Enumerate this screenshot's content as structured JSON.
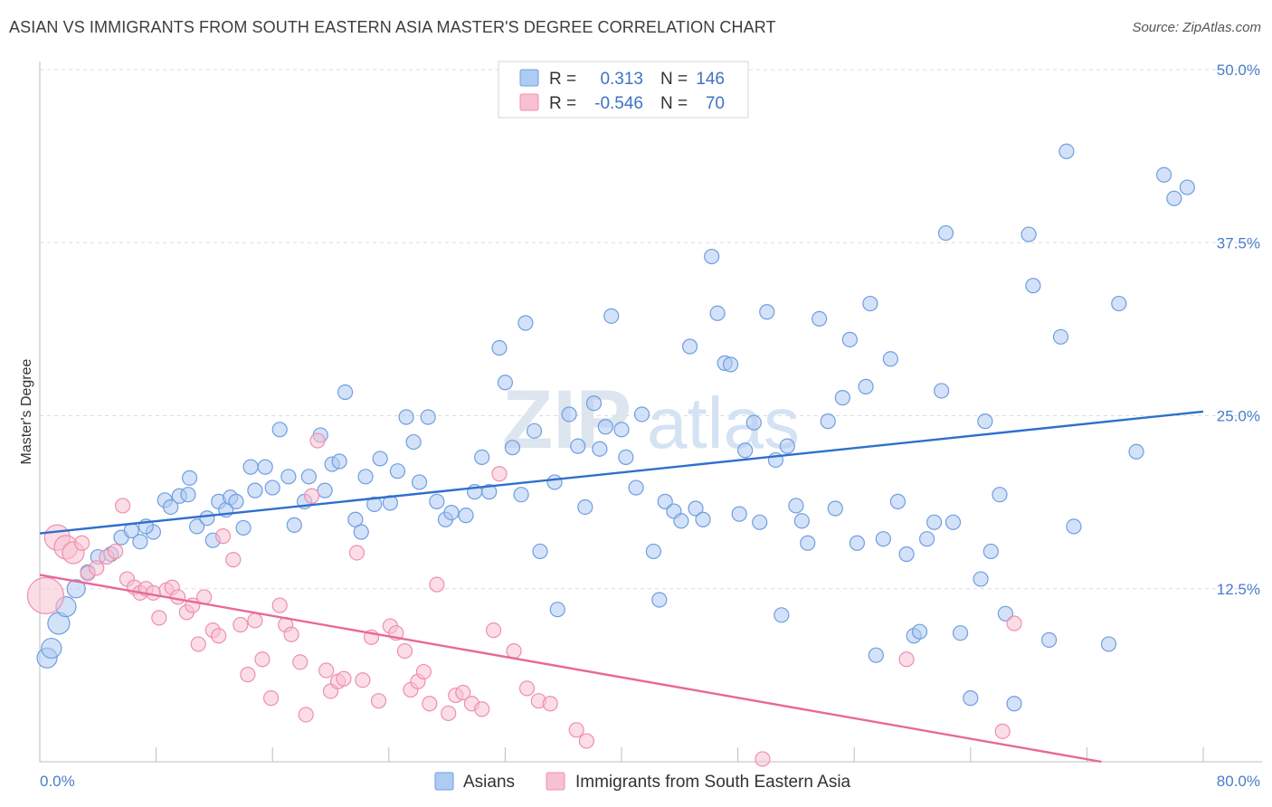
{
  "title": "ASIAN VS IMMIGRANTS FROM SOUTH EASTERN ASIA MASTER'S DEGREE CORRELATION CHART",
  "source": "Source: ZipAtlas.com",
  "watermark": {
    "zip": "ZIP",
    "atlas": "atlas"
  },
  "chart_data": {
    "type": "scatter",
    "ylabel": "Master's Degree",
    "xlim": [
      0,
      80
    ],
    "ylim": [
      0,
      50
    ],
    "x_tick_labels": [
      "0.0%",
      "80.0%"
    ],
    "y_tick_values": [
      12.5,
      25.0,
      37.5,
      50.0
    ],
    "y_tick_labels": [
      "12.5%",
      "25.0%",
      "37.5%",
      "50.0%"
    ],
    "grid": true,
    "legend_position": "top-center",
    "stats": [
      {
        "r_label": "R =",
        "r_value": "0.313",
        "n_label": "N =",
        "n_value": "146"
      },
      {
        "r_label": "R =",
        "r_value": "-0.546",
        "n_label": "N =",
        "n_value": "70"
      }
    ],
    "series": [
      {
        "name": "Asians",
        "color": "#6f9ee0",
        "fill": "#aecbf2",
        "trend": {
          "x": [
            0,
            80
          ],
          "y": [
            16.5,
            25.3
          ],
          "color": "#2f6fcd"
        },
        "points": [
          [
            0.5,
            7.5
          ],
          [
            0.8,
            8.2
          ],
          [
            1.3,
            10
          ],
          [
            1.8,
            11.2
          ],
          [
            2.5,
            12.5
          ],
          [
            3.3,
            13.7
          ],
          [
            4.0,
            14.8
          ],
          [
            4.9,
            15.0
          ],
          [
            5.6,
            16.2
          ],
          [
            6.3,
            16.7
          ],
          [
            6.9,
            15.9
          ],
          [
            7.8,
            16.6
          ],
          [
            7.3,
            17.0
          ],
          [
            8.6,
            18.9
          ],
          [
            9.0,
            18.4
          ],
          [
            9.6,
            19.2
          ],
          [
            10.2,
            19.3
          ],
          [
            10.3,
            20.5
          ],
          [
            10.8,
            17.0
          ],
          [
            11.5,
            17.6
          ],
          [
            11.9,
            16.0
          ],
          [
            12.3,
            18.8
          ],
          [
            12.8,
            18.2
          ],
          [
            13.1,
            19.1
          ],
          [
            13.5,
            18.8
          ],
          [
            14.0,
            16.9
          ],
          [
            14.5,
            21.3
          ],
          [
            14.8,
            19.6
          ],
          [
            15.5,
            21.3
          ],
          [
            16.0,
            19.8
          ],
          [
            16.5,
            24.0
          ],
          [
            17.1,
            20.6
          ],
          [
            17.5,
            17.1
          ],
          [
            18.2,
            18.8
          ],
          [
            18.5,
            20.6
          ],
          [
            19.3,
            23.6
          ],
          [
            19.6,
            19.6
          ],
          [
            20.1,
            21.5
          ],
          [
            20.6,
            21.7
          ],
          [
            21.0,
            26.7
          ],
          [
            21.7,
            17.5
          ],
          [
            22.1,
            16.6
          ],
          [
            22.4,
            20.6
          ],
          [
            23.0,
            18.6
          ],
          [
            23.4,
            21.9
          ],
          [
            24.1,
            18.7
          ],
          [
            24.6,
            21.0
          ],
          [
            25.2,
            24.9
          ],
          [
            25.7,
            23.1
          ],
          [
            26.1,
            20.2
          ],
          [
            26.7,
            24.9
          ],
          [
            27.3,
            18.8
          ],
          [
            27.9,
            17.5
          ],
          [
            28.3,
            18.0
          ],
          [
            29.3,
            17.8
          ],
          [
            29.9,
            19.5
          ],
          [
            30.4,
            22.0
          ],
          [
            30.9,
            19.5
          ],
          [
            31.6,
            29.9
          ],
          [
            32.0,
            27.4
          ],
          [
            32.5,
            22.7
          ],
          [
            33.1,
            19.3
          ],
          [
            33.4,
            31.7
          ],
          [
            34.0,
            23.9
          ],
          [
            34.4,
            15.2
          ],
          [
            35.4,
            20.2
          ],
          [
            35.6,
            11.0
          ],
          [
            36.4,
            25.1
          ],
          [
            37.0,
            22.8
          ],
          [
            37.5,
            18.4
          ],
          [
            38.1,
            25.9
          ],
          [
            38.5,
            22.6
          ],
          [
            38.9,
            24.2
          ],
          [
            39.3,
            32.2
          ],
          [
            40.0,
            24.0
          ],
          [
            40.3,
            22.0
          ],
          [
            41.0,
            19.8
          ],
          [
            41.4,
            25.1
          ],
          [
            42.2,
            15.2
          ],
          [
            42.6,
            11.7
          ],
          [
            43.0,
            18.8
          ],
          [
            43.6,
            18.1
          ],
          [
            44.1,
            17.4
          ],
          [
            44.7,
            30.0
          ],
          [
            45.1,
            18.3
          ],
          [
            45.6,
            17.5
          ],
          [
            46.2,
            36.5
          ],
          [
            46.6,
            32.4
          ],
          [
            47.1,
            28.8
          ],
          [
            47.5,
            28.7
          ],
          [
            48.1,
            17.9
          ],
          [
            48.5,
            22.5
          ],
          [
            49.1,
            24.5
          ],
          [
            49.5,
            17.3
          ],
          [
            50.0,
            32.5
          ],
          [
            50.6,
            21.8
          ],
          [
            51.0,
            10.6
          ],
          [
            51.4,
            22.8
          ],
          [
            52.0,
            18.5
          ],
          [
            52.4,
            17.4
          ],
          [
            52.8,
            15.8
          ],
          [
            53.6,
            32.0
          ],
          [
            54.2,
            24.6
          ],
          [
            54.7,
            18.3
          ],
          [
            55.2,
            26.3
          ],
          [
            55.7,
            30.5
          ],
          [
            56.2,
            15.8
          ],
          [
            56.8,
            27.1
          ],
          [
            57.1,
            33.1
          ],
          [
            57.5,
            7.7
          ],
          [
            58.0,
            16.1
          ],
          [
            58.5,
            29.1
          ],
          [
            59.0,
            18.8
          ],
          [
            59.6,
            15.0
          ],
          [
            60.1,
            9.1
          ],
          [
            60.5,
            9.4
          ],
          [
            61.0,
            16.1
          ],
          [
            61.5,
            17.3
          ],
          [
            62.0,
            26.8
          ],
          [
            62.3,
            38.2
          ],
          [
            62.8,
            17.3
          ],
          [
            63.3,
            9.3
          ],
          [
            64.0,
            4.6
          ],
          [
            64.7,
            13.2
          ],
          [
            65.0,
            24.6
          ],
          [
            65.4,
            15.2
          ],
          [
            66.0,
            19.3
          ],
          [
            66.4,
            10.7
          ],
          [
            67.0,
            4.2
          ],
          [
            68.0,
            38.1
          ],
          [
            68.3,
            34.4
          ],
          [
            69.4,
            8.8
          ],
          [
            70.2,
            30.7
          ],
          [
            70.6,
            44.1
          ],
          [
            71.1,
            17.0
          ],
          [
            73.5,
            8.5
          ],
          [
            74.2,
            33.1
          ],
          [
            75.4,
            22.4
          ],
          [
            77.3,
            42.4
          ],
          [
            78.0,
            40.7
          ],
          [
            78.9,
            41.5
          ]
        ]
      },
      {
        "name": "Immigrants from South Eastern Asia",
        "color": "#ef8fae",
        "fill": "#f7c1d2",
        "trend": {
          "x": [
            0,
            73
          ],
          "y": [
            13.5,
            0
          ],
          "color": "#e8689a"
        },
        "points": [
          [
            0.4,
            12.0
          ],
          [
            1.2,
            16.2
          ],
          [
            1.8,
            15.5
          ],
          [
            2.3,
            15.1
          ],
          [
            2.9,
            15.8
          ],
          [
            3.3,
            13.6
          ],
          [
            3.9,
            14.0
          ],
          [
            4.6,
            14.8
          ],
          [
            5.2,
            15.2
          ],
          [
            5.7,
            18.5
          ],
          [
            6.0,
            13.2
          ],
          [
            6.5,
            12.6
          ],
          [
            6.9,
            12.2
          ],
          [
            7.3,
            12.5
          ],
          [
            7.8,
            12.2
          ],
          [
            8.2,
            10.4
          ],
          [
            8.7,
            12.4
          ],
          [
            9.1,
            12.6
          ],
          [
            9.5,
            11.9
          ],
          [
            10.1,
            10.8
          ],
          [
            10.5,
            11.3
          ],
          [
            10.9,
            8.5
          ],
          [
            11.3,
            11.9
          ],
          [
            11.9,
            9.5
          ],
          [
            12.3,
            9.1
          ],
          [
            12.6,
            16.3
          ],
          [
            13.3,
            14.6
          ],
          [
            13.8,
            9.9
          ],
          [
            14.3,
            6.3
          ],
          [
            14.8,
            10.2
          ],
          [
            15.3,
            7.4
          ],
          [
            15.9,
            4.6
          ],
          [
            16.5,
            11.3
          ],
          [
            16.9,
            9.9
          ],
          [
            17.3,
            9.2
          ],
          [
            17.9,
            7.2
          ],
          [
            18.3,
            3.4
          ],
          [
            18.7,
            19.2
          ],
          [
            19.1,
            23.2
          ],
          [
            19.7,
            6.6
          ],
          [
            20.0,
            5.1
          ],
          [
            20.5,
            5.8
          ],
          [
            20.9,
            6.0
          ],
          [
            21.8,
            15.1
          ],
          [
            22.2,
            5.9
          ],
          [
            22.8,
            9.0
          ],
          [
            23.3,
            4.4
          ],
          [
            24.1,
            9.8
          ],
          [
            24.5,
            9.3
          ],
          [
            25.1,
            8.0
          ],
          [
            25.5,
            5.2
          ],
          [
            26.0,
            5.8
          ],
          [
            26.4,
            6.5
          ],
          [
            26.8,
            4.2
          ],
          [
            27.3,
            12.8
          ],
          [
            28.1,
            3.5
          ],
          [
            28.6,
            4.8
          ],
          [
            29.1,
            5.0
          ],
          [
            29.7,
            4.2
          ],
          [
            30.4,
            3.8
          ],
          [
            31.2,
            9.5
          ],
          [
            31.6,
            20.8
          ],
          [
            32.6,
            8.0
          ],
          [
            33.5,
            5.3
          ],
          [
            34.3,
            4.4
          ],
          [
            35.1,
            4.2
          ],
          [
            36.9,
            2.3
          ],
          [
            37.6,
            1.5
          ],
          [
            49.7,
            0.2
          ],
          [
            59.6,
            7.4
          ],
          [
            66.2,
            2.2
          ],
          [
            67.0,
            10.0
          ]
        ]
      }
    ]
  }
}
